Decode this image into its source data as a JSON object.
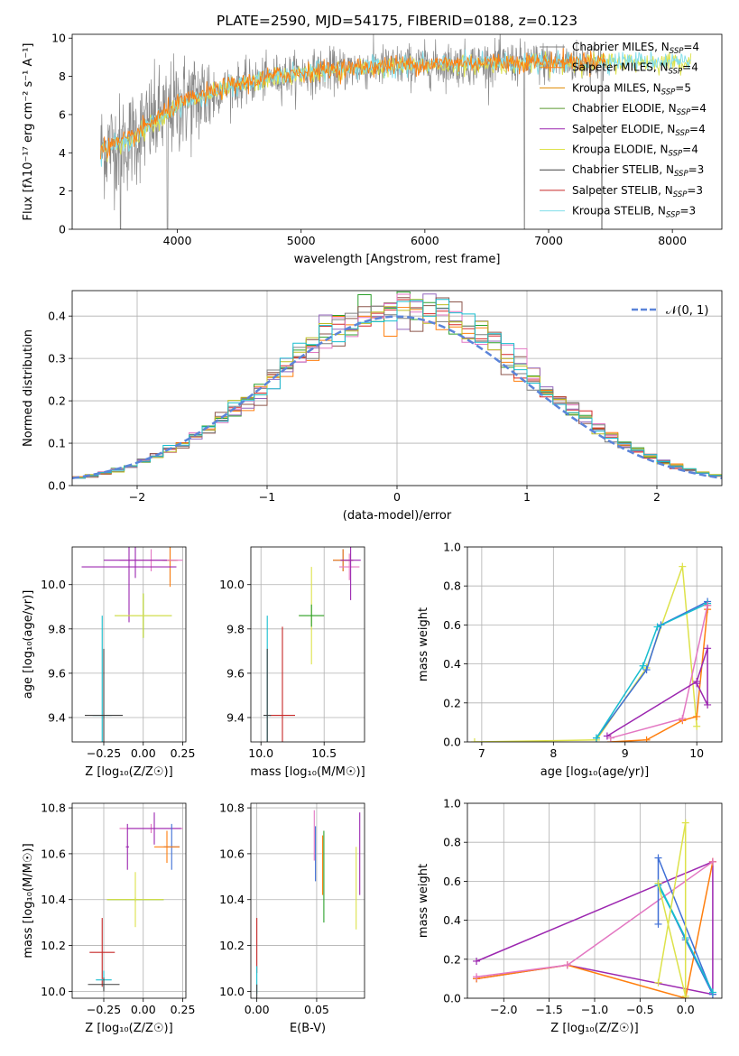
{
  "figure_title": "PLATE=2590, MJD=54175, FIBERID=0188, z=0.123",
  "series_colors": [
    "#3f6fd6",
    "#ff7f0e",
    "#2ca02c",
    "#d62728",
    "#9467bd",
    "#8c564b",
    "#e377c2",
    "#7f7f7f",
    "#bcbd22",
    "#17becf"
  ],
  "chart_data": [
    {
      "id": "spectrum",
      "type": "line",
      "title": "PLATE=2590, MJD=54175, FIBERID=0188, z=0.123",
      "xlabel": "wavelength [Angstrom, rest frame]",
      "ylabel": "Flux [fλ10⁻¹⁷ erg cm⁻² s⁻¹ A⁻¹]",
      "xlim": [
        3150,
        8400
      ],
      "ylim": [
        0,
        10.2
      ],
      "xticks": [
        "4000",
        "5000",
        "6000",
        "7000",
        "8000"
      ],
      "yticks": [
        "0",
        "2",
        "4",
        "6",
        "8",
        "10"
      ],
      "grid": false,
      "legend_position": "right",
      "legend": [
        {
          "label": "Chabrier MILES, N",
          "sub": "SSP",
          "tail": "=4",
          "color": "#7f7f7f"
        },
        {
          "label": "Salpeter MILES, N",
          "sub": "SSP",
          "tail": "=4",
          "color": "#ff7f0e"
        },
        {
          "label": "Kroupa MILES, N",
          "sub": "SSP",
          "tail": "=5",
          "color": "#e08a00"
        },
        {
          "label": "Chabrier ELODIE, N",
          "sub": "SSP",
          "tail": "=4",
          "color": "#5a9a32"
        },
        {
          "label": "Salpeter ELODIE, N",
          "sub": "SSP",
          "tail": "=4",
          "color": "#9c27b0"
        },
        {
          "label": "Kroupa ELODIE, N",
          "sub": "SSP",
          "tail": "=4",
          "color": "#dde24a"
        },
        {
          "label": "Chabrier STELIB, N",
          "sub": "SSP",
          "tail": "=3",
          "color": "#404040"
        },
        {
          "label": "Salpeter STELIB, N",
          "sub": "SSP",
          "tail": "=3",
          "color": "#c62828"
        },
        {
          "label": "Kroupa STELIB, N",
          "sub": "SSP",
          "tail": "=3",
          "color": "#80deea"
        }
      ],
      "trend": {
        "x": [
          3380,
          3600,
          3800,
          4000,
          4400,
          4800,
          5200,
          5600,
          6000,
          6500,
          7000,
          7500,
          8000,
          8100
        ],
        "y": [
          4.2,
          4.6,
          5.6,
          6.5,
          7.4,
          8.0,
          8.3,
          8.5,
          8.6,
          8.7,
          8.7,
          8.8,
          8.8,
          8.8
        ]
      },
      "model_range": [
        3380,
        8150
      ],
      "data_range": [
        3380,
        7450
      ],
      "deep_dips": [
        3540,
        3920,
        6805,
        7430
      ]
    },
    {
      "id": "residuals",
      "type": "histogram",
      "xlabel": "(data-model)/error",
      "ylabel": "Normed distribution",
      "xlim": [
        -2.5,
        2.5
      ],
      "ylim": [
        0,
        0.46
      ],
      "xticks": [
        "−2",
        "−1",
        "0",
        "1",
        "2"
      ],
      "yticks": [
        "0.0",
        "0.1",
        "0.2",
        "0.3",
        "0.4"
      ],
      "grid": true,
      "legend_position": "top-right",
      "legend_label": "𝒩(0, 1)",
      "bin_width": 0.1,
      "n_histograms": 9,
      "reference_curve": "normal distribution, mean 0, sigma 1"
    },
    {
      "id": "age-vs-z",
      "type": "scatter",
      "xlabel": "Z [log₁₀(Z/Z☉)]",
      "ylabel": "age  [log₁₀(age/yr)]",
      "xlim": [
        -0.45,
        0.27
      ],
      "ylim": [
        9.29,
        10.17
      ],
      "xticks": [
        "−0.25",
        "0.00",
        "0.25"
      ],
      "yticks": [
        "9.4",
        "9.6",
        "9.8",
        "10.0"
      ],
      "grid": true,
      "crosses": [
        {
          "x": 0.17,
          "y": 10.11,
          "xerr": 0.04,
          "yerr": 0.1,
          "color": "#3f6fd6"
        },
        {
          "x": 0.17,
          "y": 10.11,
          "xerr": 0.05,
          "yerr": 0.12,
          "color": "#ff7f0e"
        },
        {
          "x": 0.05,
          "y": 10.11,
          "xerr": 0.2,
          "yerr": 0.05,
          "color": "#e377c2"
        },
        {
          "x": -0.05,
          "y": 10.11,
          "xerr": 0.2,
          "yerr": 0.08,
          "color": "#9c27b0"
        },
        {
          "x": -0.09,
          "y": 10.08,
          "xerr": 0.3,
          "yerr": 0.25,
          "color": "#9c27b0"
        },
        {
          "x": 0.0,
          "y": 9.86,
          "xerr": 0.18,
          "yerr": 0.1,
          "color": "#2ca02c"
        },
        {
          "x": 0.0,
          "y": 9.86,
          "xerr": 0.18,
          "yerr": 0.1,
          "color": "#dde24a"
        },
        {
          "x": -0.26,
          "y": 9.41,
          "xerr": 0.06,
          "yerr": 0.45,
          "color": "#17becf"
        },
        {
          "x": -0.25,
          "y": 9.41,
          "xerr": 0.12,
          "yerr": 0.3,
          "color": "#404040"
        }
      ]
    },
    {
      "id": "age-vs-mass",
      "type": "scatter",
      "xlabel": "mass [log₁₀(M/M☉)]",
      "ylabel": "",
      "xlim": [
        9.92,
        10.82
      ],
      "ylim": [
        9.29,
        10.17
      ],
      "xticks": [
        "10.0",
        "10.5"
      ],
      "yticks": [
        "9.4",
        "9.6",
        "9.8",
        "10.0"
      ],
      "grid": true,
      "crosses": [
        {
          "x": 10.65,
          "y": 10.11,
          "xerr": 0.08,
          "yerr": 0.05,
          "color": "#3f6fd6"
        },
        {
          "x": 10.65,
          "y": 10.11,
          "xerr": 0.08,
          "yerr": 0.05,
          "color": "#ff7f0e"
        },
        {
          "x": 10.7,
          "y": 10.08,
          "xerr": 0.08,
          "yerr": 0.06,
          "color": "#e377c2"
        },
        {
          "x": 10.71,
          "y": 10.11,
          "xerr": 0.08,
          "yerr": 0.18,
          "color": "#9c27b0"
        },
        {
          "x": 10.4,
          "y": 9.86,
          "xerr": 0.1,
          "yerr": 0.22,
          "color": "#dde24a"
        },
        {
          "x": 10.4,
          "y": 9.86,
          "xerr": 0.1,
          "yerr": 0.05,
          "color": "#2ca02c"
        },
        {
          "x": 10.05,
          "y": 9.41,
          "xerr": 0.03,
          "yerr": 0.45,
          "color": "#17becf"
        },
        {
          "x": 10.17,
          "y": 9.41,
          "xerr": 0.1,
          "yerr": 0.4,
          "color": "#c62828"
        },
        {
          "x": 10.05,
          "y": 9.41,
          "xerr": 0.03,
          "yerr": 0.3,
          "color": "#404040"
        }
      ]
    },
    {
      "id": "mass-weight-vs-age",
      "type": "line",
      "xlabel": "age  [log₁₀(age/yr)]",
      "ylabel": "mass weight",
      "xlim": [
        6.8,
        10.35
      ],
      "ylim": [
        0,
        1.0
      ],
      "xticks": [
        "7",
        "8",
        "9",
        "10"
      ],
      "yticks": [
        "0.0",
        "0.2",
        "0.4",
        "0.6",
        "0.8",
        "1.0"
      ],
      "grid": true,
      "series": [
        {
          "color": "#dde24a",
          "x": [
            6.9,
            8.6,
            9.3,
            9.8,
            10.0
          ],
          "y": [
            0.0,
            0.01,
            0.38,
            0.9,
            0.08
          ]
        },
        {
          "color": "#3f6fd6",
          "x": [
            8.6,
            9.3,
            9.5,
            10.15,
            10.15
          ],
          "y": [
            0.02,
            0.37,
            0.6,
            0.72,
            0.7
          ]
        },
        {
          "color": "#17becf",
          "x": [
            8.6,
            9.25,
            9.45,
            10.15
          ],
          "y": [
            0.02,
            0.39,
            0.59,
            0.71
          ]
        },
        {
          "color": "#ff7f0e",
          "x": [
            8.8,
            9.3,
            9.8,
            10.0,
            10.15,
            10.15
          ],
          "y": [
            0.0,
            0.01,
            0.11,
            0.13,
            0.68,
            0.7
          ]
        },
        {
          "color": "#e377c2",
          "x": [
            8.8,
            9.8,
            10.15
          ],
          "y": [
            0.02,
            0.12,
            0.7
          ]
        },
        {
          "color": "#9c27b0",
          "x": [
            8.75,
            10.0,
            10.15,
            10.15,
            10.0
          ],
          "y": [
            0.03,
            0.31,
            0.48,
            0.19,
            0.3
          ]
        }
      ]
    },
    {
      "id": "mass-vs-z",
      "type": "scatter",
      "xlabel": "Z [log₁₀(Z/Z☉)]",
      "ylabel": "mass [log₁₀(M/M☉)]",
      "xlim": [
        -0.45,
        0.27
      ],
      "ylim": [
        9.97,
        10.82
      ],
      "xticks": [
        "−0.25",
        "0.00",
        "0.25"
      ],
      "yticks": [
        "10.0",
        "10.2",
        "10.4",
        "10.6",
        "10.8"
      ],
      "grid": true,
      "crosses": [
        {
          "x": 0.05,
          "y": 10.71,
          "xerr": 0.2,
          "yerr": 0.02,
          "color": "#e377c2"
        },
        {
          "x": 0.07,
          "y": 10.71,
          "xerr": 0.17,
          "yerr": 0.07,
          "color": "#9c27b0"
        },
        {
          "x": 0.18,
          "y": 10.63,
          "xerr": 0.05,
          "yerr": 0.1,
          "color": "#3f6fd6"
        },
        {
          "x": 0.15,
          "y": 10.63,
          "xerr": 0.08,
          "yerr": 0.07,
          "color": "#ff7f0e"
        },
        {
          "x": -0.1,
          "y": 10.63,
          "xerr": 0.01,
          "yerr": 0.1,
          "color": "#9c27b0"
        },
        {
          "x": -0.05,
          "y": 10.4,
          "xerr": 0.18,
          "yerr": 0.01,
          "color": "#2ca02c"
        },
        {
          "x": -0.05,
          "y": 10.4,
          "xerr": 0.18,
          "yerr": 0.12,
          "color": "#dde24a"
        },
        {
          "x": -0.26,
          "y": 10.17,
          "xerr": 0.08,
          "yerr": 0.15,
          "color": "#c62828"
        },
        {
          "x": -0.25,
          "y": 10.05,
          "xerr": 0.05,
          "yerr": 0.04,
          "color": "#17becf"
        },
        {
          "x": -0.25,
          "y": 10.03,
          "xerr": 0.1,
          "yerr": 0.03,
          "color": "#404040"
        }
      ]
    },
    {
      "id": "mass-vs-ebv",
      "type": "scatter",
      "xlabel": "E(B-V)",
      "ylabel": "",
      "xlim": [
        -0.005,
        0.09
      ],
      "ylim": [
        9.97,
        10.82
      ],
      "xticks": [
        "0.00",
        "0.05"
      ],
      "yticks": [
        "10.0",
        "10.2",
        "10.4",
        "10.6",
        "10.8"
      ],
      "grid": true,
      "crosses": [
        {
          "x": 0.048,
          "y": 10.68,
          "xerr": 0.0,
          "yerr": 0.11,
          "color": "#e377c2"
        },
        {
          "x": 0.049,
          "y": 10.6,
          "xerr": 0.0,
          "yerr": 0.12,
          "color": "#3f6fd6"
        },
        {
          "x": 0.055,
          "y": 10.55,
          "xerr": 0.0,
          "yerr": 0.13,
          "color": "#ff7f0e"
        },
        {
          "x": 0.056,
          "y": 10.5,
          "xerr": 0.0,
          "yerr": 0.2,
          "color": "#2ca02c"
        },
        {
          "x": 0.083,
          "y": 10.45,
          "xerr": 0.0,
          "yerr": 0.18,
          "color": "#dde24a"
        },
        {
          "x": 0.086,
          "y": 10.6,
          "xerr": 0.0,
          "yerr": 0.18,
          "color": "#9c27b0"
        },
        {
          "x": 0.0,
          "y": 10.2,
          "xerr": 0.0,
          "yerr": 0.12,
          "color": "#c62828"
        },
        {
          "x": 0.0,
          "y": 10.05,
          "xerr": 0.0,
          "yerr": 0.06,
          "color": "#17becf"
        },
        {
          "x": 0.0,
          "y": 10.0,
          "xerr": 0.0,
          "yerr": 0.03,
          "color": "#404040"
        }
      ]
    },
    {
      "id": "mass-weight-vs-z",
      "type": "line",
      "xlabel": "Z [log₁₀(Z/Z☉)]",
      "ylabel": "mass weight",
      "xlim": [
        -2.4,
        0.4
      ],
      "ylim": [
        0,
        1.0
      ],
      "xticks": [
        "−2.0",
        "−1.5",
        "−1.0",
        "−0.5",
        "0.0"
      ],
      "yticks": [
        "0.0",
        "0.2",
        "0.4",
        "0.6",
        "0.8",
        "1.0"
      ],
      "grid": true,
      "series": [
        {
          "color": "#9c27b0",
          "x": [
            -2.3,
            0.3,
            0.3,
            -1.3,
            -2.3
          ],
          "y": [
            0.19,
            0.7,
            0.02,
            0.17,
            0.1
          ]
        },
        {
          "color": "#ff7f0e",
          "x": [
            -2.3,
            -1.3,
            0.0,
            0.3,
            0.3
          ],
          "y": [
            0.1,
            0.17,
            0.0,
            0.7,
            0.7
          ]
        },
        {
          "color": "#e377c2",
          "x": [
            -2.3,
            -1.3,
            0.3
          ],
          "y": [
            0.11,
            0.17,
            0.7
          ]
        },
        {
          "color": "#3f6fd6",
          "x": [
            -0.3,
            0.0,
            0.3,
            -0.3,
            -0.3
          ],
          "y": [
            0.59,
            0.3,
            0.02,
            0.72,
            0.38
          ]
        },
        {
          "color": "#17becf",
          "x": [
            -0.3,
            0.0,
            0.3,
            -0.3
          ],
          "y": [
            0.58,
            0.31,
            0.03,
            0.59
          ]
        },
        {
          "color": "#dde24a",
          "x": [
            -0.3,
            0.0,
            0.0,
            -0.3
          ],
          "y": [
            0.08,
            0.9,
            0.01,
            0.59
          ]
        }
      ]
    }
  ]
}
